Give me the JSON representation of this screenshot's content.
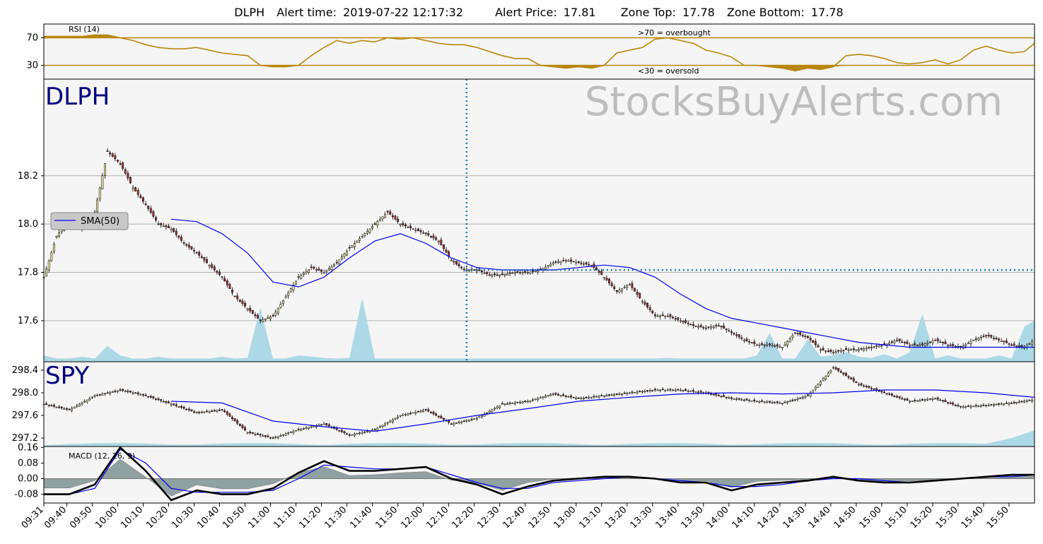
{
  "header": {
    "ticker": "DLPH",
    "alert_time_label": "Alert time:",
    "alert_time": "2019-07-22 12:17:32",
    "alert_price_label": "Alert Price:",
    "alert_price": "17.81",
    "zone_top_label": "Zone Top:",
    "zone_top": "17.78",
    "zone_bottom_label": "Zone Bottom:",
    "zone_bottom": "17.78"
  },
  "watermark": "StocksBuyAlerts.com",
  "colors": {
    "panel_bg": "#f5f5f5",
    "rsi": "#b8860b",
    "sma": "#0000ee",
    "volume": "#add8e6",
    "alert_line": "#1f77b4",
    "ticker_label": "#000080",
    "macd_hist": "#7f9393",
    "grid": "#b0b0b0",
    "candle_up": "#e8e0a0",
    "candle_down": "#a03030"
  },
  "chart_data": [
    {
      "type": "line",
      "panel": "rsi",
      "title": "RSI (14)",
      "ylim": [
        10,
        90
      ],
      "yticks": [
        30,
        70
      ],
      "thresholds": [
        70,
        30
      ],
      "annotations": [
        ">70 = overbought",
        "<30 = oversold"
      ],
      "x_minutes_from_0931": [
        0,
        5,
        10,
        15,
        20,
        25,
        30,
        35,
        40,
        45,
        50,
        55,
        60,
        65,
        70,
        75,
        80,
        85,
        90,
        95,
        100,
        105,
        110,
        115,
        120,
        125,
        130,
        135,
        140,
        145,
        150,
        155,
        160,
        165,
        170,
        175,
        180,
        185,
        190,
        195,
        200,
        205,
        210,
        215,
        220,
        225,
        230,
        235,
        240,
        245,
        250,
        255,
        260,
        265,
        270,
        275,
        280,
        285,
        290,
        295,
        300,
        305,
        310,
        315,
        320,
        325,
        330,
        335,
        340,
        345,
        350,
        355,
        360,
        365,
        370,
        375,
        380,
        385,
        389
      ],
      "values": [
        72,
        72,
        72,
        72,
        74,
        74,
        70,
        66,
        60,
        56,
        54,
        54,
        56,
        52,
        48,
        46,
        44,
        30,
        28,
        28,
        30,
        44,
        56,
        66,
        62,
        66,
        64,
        70,
        68,
        70,
        66,
        62,
        60,
        60,
        56,
        50,
        44,
        40,
        40,
        30,
        28,
        26,
        28,
        26,
        30,
        48,
        52,
        56,
        68,
        70,
        66,
        62,
        52,
        48,
        42,
        30,
        30,
        28,
        26,
        22,
        26,
        24,
        28,
        44,
        46,
        44,
        40,
        34,
        32,
        34,
        38,
        32,
        38,
        52,
        58,
        52,
        48,
        50,
        62
      ],
      "grid": false
    },
    {
      "type": "candlestick",
      "panel": "price",
      "label": "DLPH",
      "ylim": [
        17.43,
        18.6
      ],
      "yticks": [
        17.6,
        17.8,
        18.0,
        18.2
      ],
      "grid": true,
      "legend": "upper-left",
      "sma_label": "SMA(50)",
      "alert_marker": {
        "time": "12:17",
        "price": 17.81
      },
      "x_minutes_from_0931": [
        0,
        5,
        10,
        15,
        20,
        25,
        30,
        35,
        40,
        45,
        50,
        55,
        60,
        65,
        70,
        75,
        80,
        85,
        90,
        95,
        100,
        105,
        110,
        115,
        120,
        125,
        130,
        135,
        140,
        145,
        150,
        155,
        160,
        165,
        170,
        175,
        180,
        185,
        190,
        195,
        200,
        205,
        210,
        215,
        220,
        225,
        230,
        235,
        240,
        245,
        250,
        255,
        260,
        265,
        270,
        275,
        280,
        285,
        290,
        295,
        300,
        305,
        310,
        315,
        320,
        325,
        330,
        335,
        340,
        345,
        350,
        355,
        360,
        365,
        370,
        375,
        380,
        385,
        389
      ],
      "close": [
        17.78,
        17.95,
        18.02,
        17.98,
        18.05,
        18.3,
        18.25,
        18.15,
        18.08,
        18.0,
        17.98,
        17.92,
        17.88,
        17.83,
        17.78,
        17.7,
        17.65,
        17.6,
        17.62,
        17.7,
        17.78,
        17.82,
        17.8,
        17.84,
        17.9,
        17.95,
        18.0,
        18.05,
        18.0,
        17.98,
        17.96,
        17.93,
        17.85,
        17.81,
        17.81,
        17.79,
        17.79,
        17.8,
        17.8,
        17.81,
        17.84,
        17.85,
        17.84,
        17.83,
        17.78,
        17.72,
        17.75,
        17.68,
        17.62,
        17.62,
        17.6,
        17.58,
        17.57,
        17.58,
        17.55,
        17.52,
        17.5,
        17.5,
        17.49,
        17.55,
        17.53,
        17.48,
        17.47,
        17.48,
        17.48,
        17.49,
        17.5,
        17.52,
        17.5,
        17.5,
        17.52,
        17.5,
        17.49,
        17.52,
        17.54,
        17.52,
        17.5,
        17.49,
        17.52
      ],
      "sma_x_minutes": [
        50,
        60,
        70,
        80,
        90,
        100,
        110,
        120,
        130,
        140,
        150,
        160,
        170,
        180,
        190,
        200,
        210,
        220,
        230,
        240,
        250,
        260,
        270,
        280,
        290,
        300,
        310,
        320,
        330,
        340,
        350,
        360,
        370,
        380,
        389
      ],
      "sma": [
        18.02,
        18.01,
        17.96,
        17.88,
        17.76,
        17.74,
        17.78,
        17.86,
        17.93,
        17.96,
        17.92,
        17.86,
        17.82,
        17.81,
        17.81,
        17.81,
        17.82,
        17.83,
        17.82,
        17.78,
        17.71,
        17.65,
        17.61,
        17.59,
        17.57,
        17.55,
        17.53,
        17.51,
        17.5,
        17.49,
        17.49,
        17.49,
        17.49,
        17.49,
        17.49
      ],
      "volume": [
        0.1,
        0.05,
        0.05,
        0.08,
        0.05,
        0.25,
        0.1,
        0.05,
        0.05,
        0.08,
        0.05,
        0.05,
        0.05,
        0.05,
        0.08,
        0.05,
        0.06,
        0.85,
        0.05,
        0.05,
        0.1,
        0.08,
        0.06,
        0.05,
        0.06,
        1.0,
        0.05,
        0.05,
        0.05,
        0.05,
        0.05,
        0.05,
        0.05,
        0.05,
        0.05,
        0.05,
        0.05,
        0.05,
        0.05,
        0.05,
        0.05,
        0.05,
        0.05,
        0.05,
        0.05,
        0.05,
        0.05,
        0.05,
        0.05,
        0.06,
        0.05,
        0.05,
        0.05,
        0.05,
        0.05,
        0.05,
        0.1,
        0.45,
        0.05,
        0.05,
        0.35,
        0.08,
        0.1,
        0.15,
        0.08,
        0.06,
        0.12,
        0.05,
        0.15,
        0.75,
        0.05,
        0.1,
        0.05,
        0.05,
        0.05,
        0.1,
        0.05,
        0.55,
        0.65
      ]
    },
    {
      "type": "candlestick",
      "panel": "spy",
      "label": "SPY",
      "ylim": [
        297.05,
        298.55
      ],
      "yticks": [
        297.2,
        297.6,
        298.0,
        298.4
      ],
      "grid": false,
      "x_minutes_from_0931": [
        0,
        10,
        20,
        30,
        40,
        50,
        60,
        70,
        80,
        90,
        100,
        110,
        120,
        130,
        140,
        150,
        160,
        170,
        180,
        190,
        200,
        210,
        220,
        230,
        240,
        250,
        260,
        270,
        280,
        290,
        300,
        310,
        320,
        330,
        340,
        350,
        360,
        370,
        380,
        389
      ],
      "close": [
        297.8,
        297.7,
        297.95,
        298.05,
        297.95,
        297.8,
        297.65,
        297.7,
        297.3,
        297.2,
        297.35,
        297.45,
        297.25,
        297.35,
        297.6,
        297.7,
        297.45,
        297.55,
        297.8,
        297.85,
        297.98,
        297.9,
        297.95,
        298.0,
        298.05,
        298.05,
        298.0,
        297.9,
        297.85,
        297.82,
        297.95,
        298.45,
        298.15,
        298.0,
        297.85,
        297.9,
        297.75,
        297.78,
        297.82,
        297.88
      ],
      "sma_x_minutes": [
        50,
        70,
        90,
        110,
        130,
        150,
        170,
        190,
        210,
        230,
        250,
        270,
        290,
        310,
        330,
        350,
        370,
        389
      ],
      "sma": [
        297.85,
        297.82,
        297.5,
        297.4,
        297.32,
        297.45,
        297.6,
        297.72,
        297.85,
        297.92,
        297.98,
        298.0,
        297.98,
        298.0,
        298.05,
        298.05,
        298.0,
        297.92
      ]
    },
    {
      "type": "line",
      "panel": "macd",
      "title": "MACD (12, 26, 9)",
      "ylim": [
        -0.125,
        0.165
      ],
      "yticks": [
        -0.08,
        0.0,
        0.08,
        0.16
      ],
      "grid": false,
      "x_minutes_from_0931": [
        0,
        10,
        20,
        30,
        40,
        50,
        60,
        70,
        80,
        90,
        100,
        110,
        120,
        130,
        140,
        150,
        160,
        170,
        180,
        190,
        200,
        210,
        220,
        230,
        240,
        250,
        260,
        270,
        280,
        290,
        300,
        310,
        320,
        330,
        340,
        350,
        360,
        370,
        380,
        389
      ],
      "macd": [
        -0.08,
        -0.08,
        -0.03,
        0.16,
        0.04,
        -0.11,
        -0.06,
        -0.08,
        -0.08,
        -0.05,
        0.03,
        0.09,
        0.04,
        0.04,
        0.05,
        0.06,
        0.0,
        -0.03,
        -0.08,
        -0.04,
        -0.01,
        0.0,
        0.01,
        0.01,
        0.0,
        -0.02,
        -0.02,
        -0.06,
        -0.03,
        -0.02,
        -0.01,
        0.01,
        -0.01,
        -0.02,
        -0.02,
        -0.01,
        0.0,
        0.01,
        0.02,
        0.02
      ],
      "signal": [
        -0.08,
        -0.08,
        -0.05,
        0.15,
        0.08,
        -0.05,
        -0.07,
        -0.07,
        -0.07,
        -0.06,
        0.0,
        0.07,
        0.06,
        0.05,
        0.05,
        0.06,
        0.02,
        -0.02,
        -0.05,
        -0.05,
        -0.02,
        -0.01,
        0.0,
        0.01,
        0.0,
        -0.01,
        -0.02,
        -0.04,
        -0.04,
        -0.03,
        -0.01,
        0.0,
        0.0,
        -0.01,
        -0.02,
        -0.01,
        0.0,
        0.01,
        0.01,
        0.02
      ]
    }
  ],
  "x_axis": {
    "ticks": [
      "09:31",
      "09:40",
      "09:50",
      "10:00",
      "10:10",
      "10:20",
      "10:30",
      "10:40",
      "10:50",
      "11:00",
      "11:10",
      "11:20",
      "11:30",
      "11:40",
      "11:50",
      "12:00",
      "12:10",
      "12:20",
      "12:30",
      "12:40",
      "12:50",
      "13:00",
      "13:10",
      "13:20",
      "13:30",
      "13:40",
      "13:50",
      "14:00",
      "14:10",
      "14:20",
      "14:30",
      "14:40",
      "14:50",
      "15:00",
      "15:10",
      "15:20",
      "15:30",
      "15:40",
      "15:50"
    ],
    "tick_minutes": [
      0,
      9,
      19,
      29,
      39,
      49,
      59,
      69,
      79,
      89,
      99,
      109,
      119,
      129,
      139,
      149,
      159,
      169,
      179,
      189,
      199,
      209,
      219,
      229,
      239,
      249,
      259,
      269,
      279,
      289,
      299,
      309,
      319,
      329,
      339,
      349,
      359,
      369,
      379
    ]
  }
}
